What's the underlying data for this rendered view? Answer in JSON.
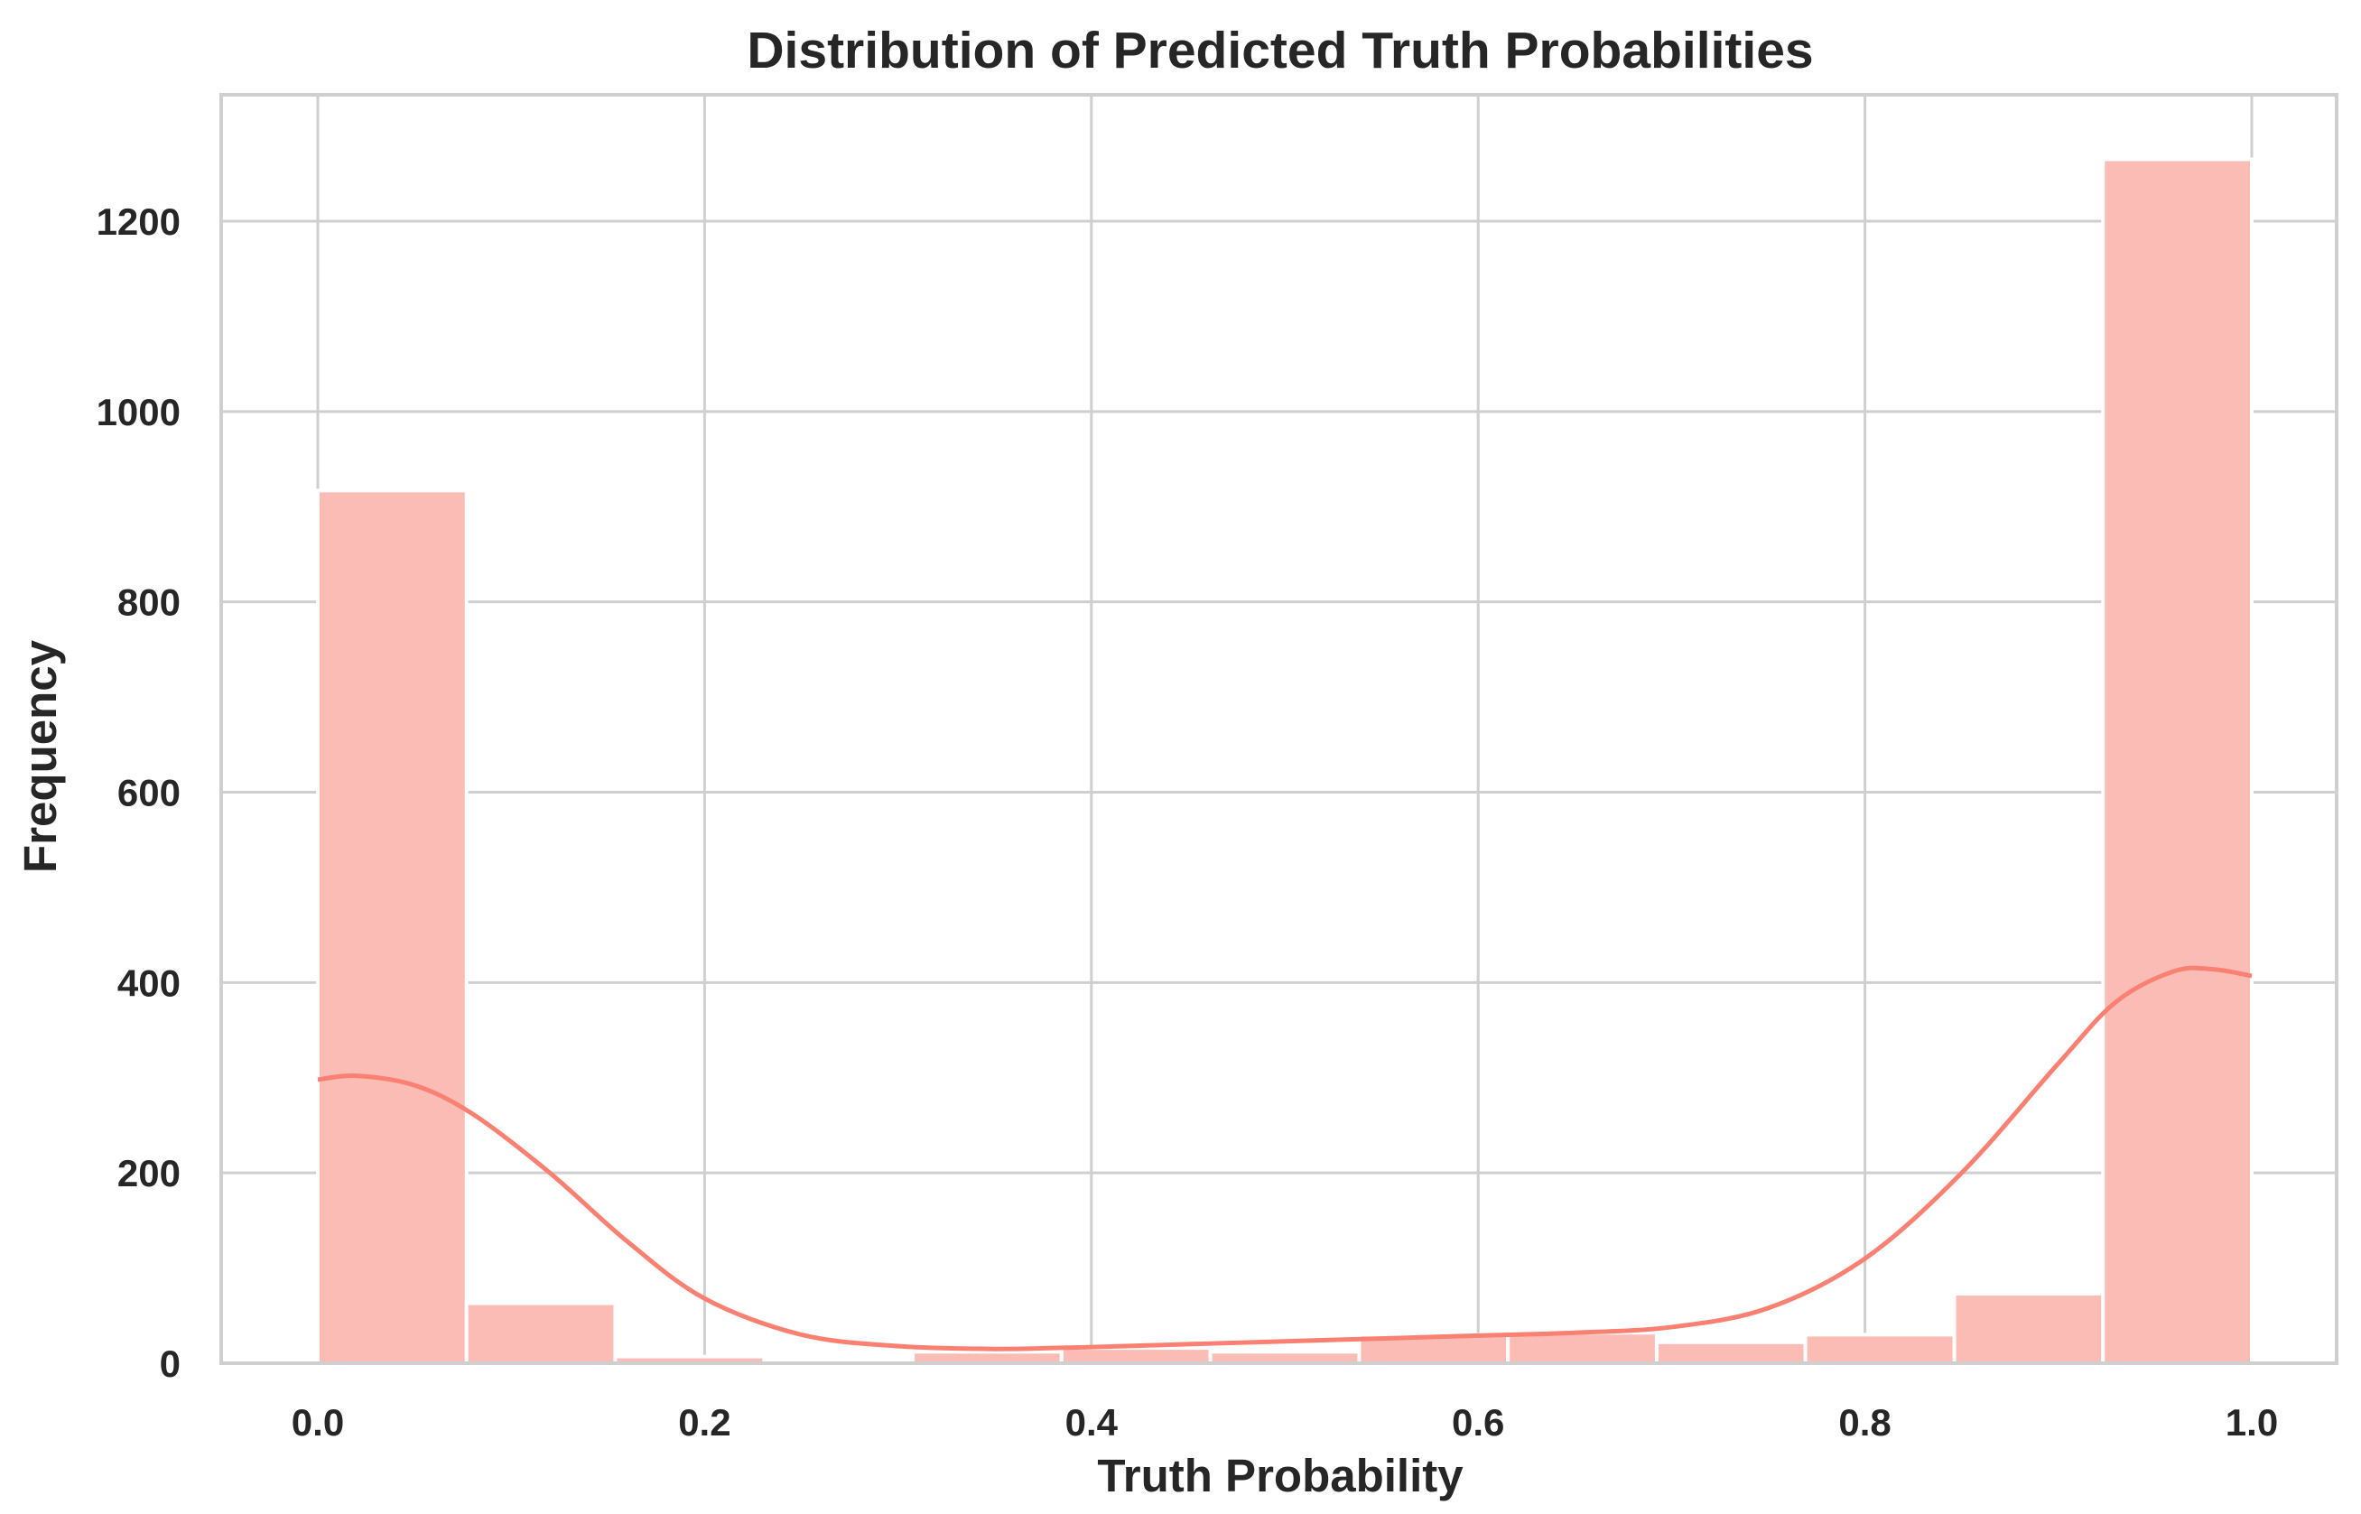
{
  "chart_data": {
    "type": "bar",
    "title": "Distribution of Predicted Truth Probabilities",
    "xlabel": "Truth Probability",
    "ylabel": "Frequency",
    "xlim": [
      -0.05,
      1.04
    ],
    "ylim": [
      0,
      1330
    ],
    "xticks": [
      "0.0",
      "0.2",
      "0.4",
      "0.6",
      "0.8",
      "1.0"
    ],
    "xtick_values": [
      0.0,
      0.2,
      0.4,
      0.6,
      0.8,
      1.0
    ],
    "yticks": [
      "0",
      "200",
      "400",
      "600",
      "800",
      "1000",
      "1200"
    ],
    "ytick_values": [
      0,
      200,
      400,
      600,
      800,
      1000,
      1200
    ],
    "grid": true,
    "bins": {
      "edges": [
        0.0,
        0.0769,
        0.1538,
        0.2308,
        0.3077,
        0.3846,
        0.4615,
        0.5385,
        0.6154,
        0.6923,
        0.7692,
        0.8462,
        0.9231,
        1.0
      ],
      "values": [
        917,
        63,
        7,
        2,
        12,
        16,
        12,
        30,
        32,
        22,
        30,
        73,
        1265
      ]
    },
    "kde": {
      "x": [
        0.0,
        0.02,
        0.05,
        0.08,
        0.12,
        0.16,
        0.2,
        0.25,
        0.3,
        0.35,
        0.4,
        0.45,
        0.5,
        0.55,
        0.6,
        0.65,
        0.7,
        0.75,
        0.8,
        0.85,
        0.9,
        0.93,
        0.96,
        0.98,
        1.0
      ],
      "y": [
        298,
        302,
        292,
        262,
        200,
        128,
        68,
        30,
        18,
        15,
        17,
        20,
        23,
        26,
        29,
        32,
        38,
        58,
        110,
        200,
        315,
        380,
        412,
        414,
        407
      ]
    },
    "colors": {
      "bar_fill": "#fabcb4",
      "bar_edge": "#ffffff",
      "kde_line": "#fa8072",
      "grid": "#cfcfcf",
      "frame": "#cfcfcf",
      "text": "#262626"
    }
  }
}
